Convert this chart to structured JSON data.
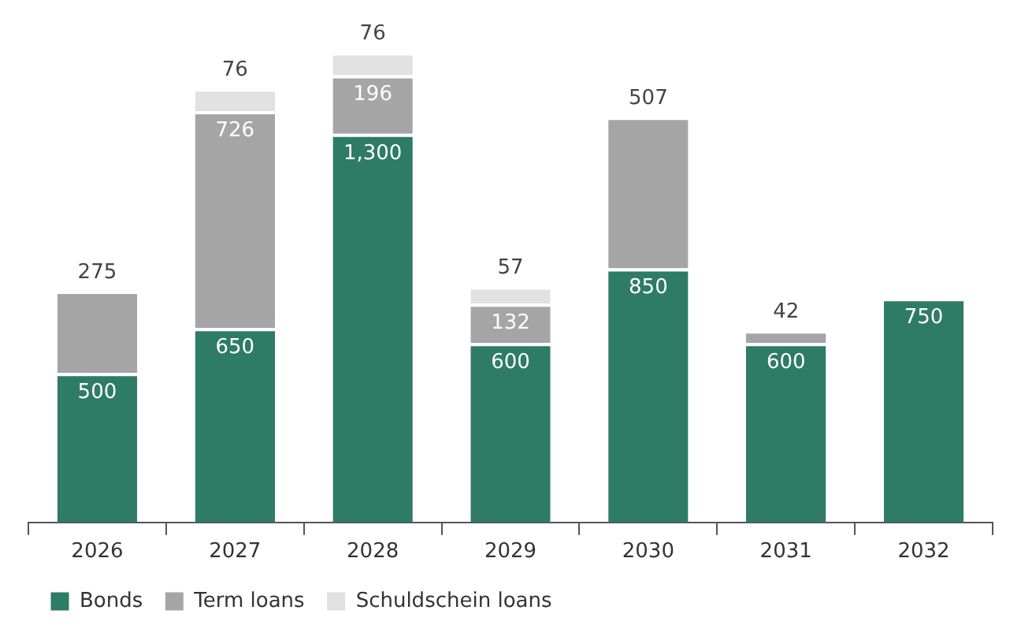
{
  "chart_data": {
    "type": "bar",
    "stacked": true,
    "categories": [
      "2026",
      "2027",
      "2028",
      "2029",
      "2030",
      "2031",
      "2032"
    ],
    "series": [
      {
        "name": "Bonds",
        "color": "#2e7b66",
        "values": [
          500,
          650,
          1300,
          600,
          850,
          600,
          750
        ],
        "value_labels": [
          "500",
          "650",
          "1,300",
          "600",
          "850",
          "600",
          "750"
        ]
      },
      {
        "name": "Term loans",
        "color": "#a5a5a5",
        "values": [
          275,
          726,
          196,
          132,
          507,
          42,
          null
        ],
        "value_labels": [
          "275",
          "726",
          "196",
          "132",
          "507",
          "42",
          null
        ]
      },
      {
        "name": "Schuldschein loans",
        "color": "#e1e1e1",
        "values": [
          null,
          76,
          76,
          57,
          null,
          null,
          null
        ],
        "value_labels": [
          null,
          "76",
          "76",
          "57",
          null,
          null,
          null
        ]
      }
    ],
    "grid": false,
    "legend": "bottom left",
    "tick_labels": "x"
  }
}
